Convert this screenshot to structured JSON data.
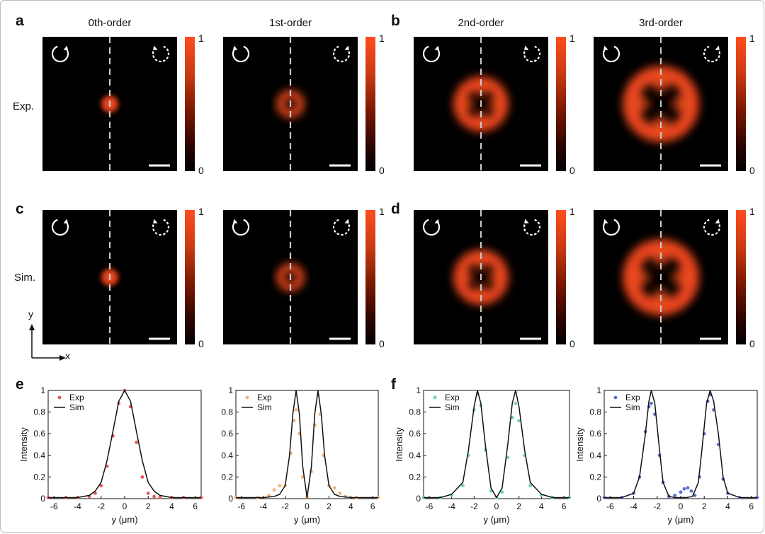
{
  "panel_letters": {
    "a": "a",
    "b": "b",
    "c": "c",
    "d": "d",
    "e": "e",
    "f": "f"
  },
  "column_titles": [
    "0th-order",
    "1st-order",
    "2nd-order",
    "3rd-order"
  ],
  "row_labels": {
    "exp": "Exp.",
    "sim": "Sim."
  },
  "colorbar": {
    "max_label": "1",
    "min_label": "0",
    "colormap": [
      "#000000",
      "#7a1800",
      "#ff4d1e"
    ]
  },
  "axes_indicator": {
    "y": "y",
    "x": "x"
  },
  "images": [
    {
      "row": "Exp.",
      "order": "0th-order",
      "pattern": "spot",
      "input_arrow": "clockwise",
      "output_arrow": "counter-clockwise dashed"
    },
    {
      "row": "Exp.",
      "order": "1st-order",
      "pattern": "ring",
      "input_arrow": "counter-clockwise",
      "output_arrow": "clockwise dashed"
    },
    {
      "row": "Exp.",
      "order": "2nd-order",
      "pattern": "four-lobe ring",
      "input_arrow": "clockwise",
      "output_arrow": "counter-clockwise dashed"
    },
    {
      "row": "Exp.",
      "order": "3rd-order",
      "pattern": "four-lobe ring",
      "input_arrow": "counter-clockwise",
      "output_arrow": "clockwise dashed"
    },
    {
      "row": "Sim.",
      "order": "0th-order",
      "pattern": "spot",
      "input_arrow": "clockwise",
      "output_arrow": "counter-clockwise dashed"
    },
    {
      "row": "Sim.",
      "order": "1st-order",
      "pattern": "ring",
      "input_arrow": "counter-clockwise",
      "output_arrow": "clockwise dashed"
    },
    {
      "row": "Sim.",
      "order": "2nd-order",
      "pattern": "four-lobe ring",
      "input_arrow": "clockwise",
      "output_arrow": "counter-clockwise dashed"
    },
    {
      "row": "Sim.",
      "order": "3rd-order",
      "pattern": "four-lobe ring",
      "input_arrow": "counter-clockwise",
      "output_arrow": "clockwise dashed"
    }
  ],
  "chart_data": [
    {
      "type": "line",
      "panel": "e",
      "order": "0th-order",
      "xlabel": "y (μm)",
      "ylabel": "Intensity",
      "xlim": [
        -6.5,
        6.5
      ],
      "ylim": [
        0,
        1
      ],
      "xticks": [
        "-6",
        "-4",
        "-2",
        "0",
        "2",
        "4",
        "6"
      ],
      "yticks": [
        "0",
        "0.2",
        "0.4",
        "0.6",
        "0.8",
        "1"
      ],
      "legend": [
        "Exp",
        "Sim"
      ],
      "legend_position": "top-left",
      "series": [
        {
          "name": "Exp",
          "style": "points",
          "color": "#e8565a",
          "x": [
            -6.5,
            -5,
            -4,
            -3,
            -2.5,
            -2,
            -1.5,
            -1,
            -0.5,
            0,
            0.5,
            1,
            1.5,
            2,
            2.5,
            3,
            4,
            5,
            6.5
          ],
          "y": [
            0.01,
            0.01,
            0.01,
            0.02,
            0.05,
            0.12,
            0.3,
            0.58,
            0.88,
            1.0,
            0.85,
            0.52,
            0.2,
            0.05,
            0.02,
            0.01,
            0.01,
            0.01,
            0.01
          ]
        },
        {
          "name": "Sim",
          "style": "line",
          "color": "#111111",
          "x": [
            -6.5,
            -5,
            -4,
            -3,
            -2.5,
            -2,
            -1.5,
            -1,
            -0.5,
            0,
            0.5,
            1,
            1.5,
            2,
            2.5,
            3,
            4,
            5,
            6.5
          ],
          "y": [
            0.01,
            0.01,
            0.01,
            0.03,
            0.07,
            0.15,
            0.35,
            0.62,
            0.9,
            1.0,
            0.9,
            0.62,
            0.35,
            0.15,
            0.07,
            0.03,
            0.01,
            0.01,
            0.01
          ]
        }
      ]
    },
    {
      "type": "line",
      "panel": "e",
      "order": "1st-order",
      "xlabel": "y (μm)",
      "ylabel": "",
      "xlim": [
        -6.5,
        6.5
      ],
      "ylim": [
        0,
        1
      ],
      "xticks": [
        "-6",
        "-4",
        "-2",
        "0",
        "2",
        "4",
        "6"
      ],
      "yticks": [
        "0",
        "0.2",
        "0.4",
        "0.6",
        "0.8",
        "1"
      ],
      "legend": [
        "Exp",
        "Sim"
      ],
      "legend_position": "top-left",
      "series": [
        {
          "name": "Exp",
          "style": "points",
          "color": "#f0b27a",
          "x": [
            -6.5,
            -4.5,
            -3.5,
            -3,
            -2.5,
            -2,
            -1.5,
            -1.2,
            -1,
            -0.7,
            -0.4,
            0,
            0.4,
            0.7,
            1,
            1.2,
            1.5,
            2,
            2.5,
            3,
            3.5,
            4.5,
            6.5
          ],
          "y": [
            0.01,
            0.01,
            0.03,
            0.08,
            0.12,
            0.12,
            0.42,
            0.72,
            0.82,
            0.6,
            0.2,
            0.02,
            0.25,
            0.68,
            0.95,
            0.78,
            0.4,
            0.12,
            0.1,
            0.05,
            0.02,
            0.01,
            0.01
          ]
        },
        {
          "name": "Sim",
          "style": "line",
          "color": "#111111",
          "x": [
            -6.5,
            -4,
            -3,
            -2.5,
            -2,
            -1.6,
            -1.3,
            -1,
            -0.7,
            -0.4,
            0,
            0.4,
            0.7,
            1,
            1.3,
            1.6,
            2,
            2.5,
            3,
            4,
            6.5
          ],
          "y": [
            0.01,
            0.01,
            0.02,
            0.04,
            0.12,
            0.4,
            0.78,
            1.0,
            0.78,
            0.3,
            0.01,
            0.3,
            0.78,
            1.0,
            0.78,
            0.4,
            0.12,
            0.04,
            0.02,
            0.01,
            0.01
          ]
        }
      ]
    },
    {
      "type": "line",
      "panel": "f",
      "order": "2nd-order",
      "xlabel": "y (μm)",
      "ylabel": "Intensity",
      "xlim": [
        -6.5,
        6.5
      ],
      "ylim": [
        0,
        1
      ],
      "xticks": [
        "-6",
        "-4",
        "-2",
        "0",
        "2",
        "4",
        "6"
      ],
      "yticks": [
        "0",
        "0.2",
        "0.4",
        "0.6",
        "0.8",
        "1"
      ],
      "legend": [
        "Exp",
        "Sim"
      ],
      "legend_position": "top-left",
      "series": [
        {
          "name": "Exp",
          "style": "points",
          "color": "#6fd6a4",
          "x": [
            -6.5,
            -5,
            -4,
            -3,
            -2.5,
            -2,
            -1.7,
            -1.4,
            -1,
            -0.5,
            0,
            0.5,
            1,
            1.4,
            1.7,
            2,
            2.5,
            3,
            4,
            5,
            6.5
          ],
          "y": [
            0.01,
            0.01,
            0.03,
            0.12,
            0.4,
            0.82,
            0.97,
            0.86,
            0.45,
            0.07,
            0.01,
            0.06,
            0.38,
            0.75,
            0.88,
            0.72,
            0.4,
            0.12,
            0.03,
            0.01,
            0.01
          ]
        },
        {
          "name": "Sim",
          "style": "line",
          "color": "#111111",
          "x": [
            -6.5,
            -5,
            -4,
            -3,
            -2.5,
            -2,
            -1.7,
            -1.4,
            -1,
            -0.5,
            0,
            0.5,
            1,
            1.4,
            1.7,
            2,
            2.5,
            3,
            4,
            5,
            6.5
          ],
          "y": [
            0.01,
            0.01,
            0.04,
            0.15,
            0.45,
            0.85,
            1.0,
            0.88,
            0.5,
            0.1,
            0.01,
            0.1,
            0.5,
            0.88,
            1.0,
            0.85,
            0.45,
            0.15,
            0.04,
            0.01,
            0.01
          ]
        }
      ]
    },
    {
      "type": "line",
      "panel": "f",
      "order": "3rd-order",
      "xlabel": "y (μm)",
      "ylabel": "Intensity",
      "xlim": [
        -6.5,
        6.5
      ],
      "ylim": [
        0,
        1
      ],
      "xticks": [
        "-6",
        "-4",
        "-2",
        "0",
        "2",
        "4",
        "6"
      ],
      "yticks": [
        "0",
        "0.2",
        "0.4",
        "0.6",
        "0.8",
        "1"
      ],
      "legend": [
        "Exp",
        "Sim"
      ],
      "legend_position": "top-left",
      "series": [
        {
          "name": "Exp",
          "style": "points",
          "color": "#5a6fd0",
          "x": [
            -6.5,
            -5,
            -4,
            -3.5,
            -3,
            -2.7,
            -2.5,
            -2.2,
            -1.8,
            -1.5,
            -1,
            -0.5,
            0,
            0.3,
            0.6,
            0.9,
            1.2,
            1.6,
            2,
            2.3,
            2.5,
            2.8,
            3.2,
            3.6,
            4,
            5,
            6.5
          ],
          "y": [
            0.01,
            0.01,
            0.05,
            0.2,
            0.62,
            0.85,
            0.88,
            0.78,
            0.4,
            0.15,
            0.02,
            0.03,
            0.06,
            0.09,
            0.1,
            0.07,
            0.03,
            0.2,
            0.6,
            0.9,
            0.96,
            0.82,
            0.5,
            0.18,
            0.05,
            0.01,
            0.01
          ]
        },
        {
          "name": "Sim",
          "style": "line",
          "color": "#111111",
          "x": [
            -6.5,
            -5,
            -4,
            -3.5,
            -3,
            -2.7,
            -2.5,
            -2.2,
            -1.8,
            -1.5,
            -1,
            -0.5,
            0,
            0.5,
            1,
            1.5,
            1.8,
            2.2,
            2.5,
            2.8,
            3.2,
            3.6,
            4,
            5,
            6.5
          ],
          "y": [
            0.01,
            0.01,
            0.05,
            0.2,
            0.6,
            0.9,
            1.0,
            0.88,
            0.45,
            0.15,
            0.02,
            0.01,
            0.01,
            0.01,
            0.02,
            0.15,
            0.45,
            0.88,
            1.0,
            0.9,
            0.6,
            0.2,
            0.05,
            0.01,
            0.01
          ]
        }
      ]
    }
  ]
}
